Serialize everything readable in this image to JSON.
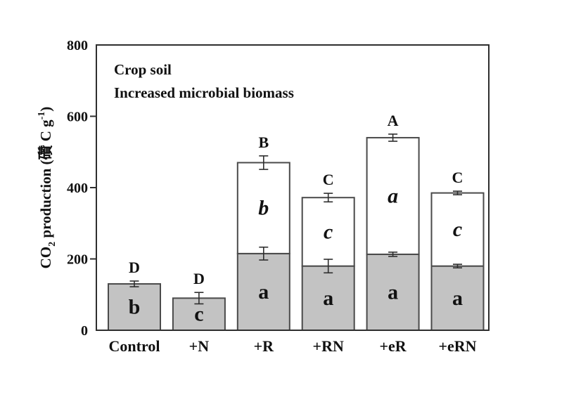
{
  "style": {
    "background": "#ffffff",
    "frame_color": "#2e2e2e",
    "bar_stroke_color": "#4a4a4a",
    "gray_fill": "#c3c3c3",
    "white_fill": "#ffffff",
    "error_bar_color": "#2e2e2e",
    "text_color": "#111111"
  },
  "chart_data": {
    "type": "bar",
    "stacked": true,
    "annotation_lines": [
      "Crop soil",
      "Increased microbial biomass"
    ],
    "ylabel_parts": {
      "prefix": "CO",
      "sub": "2",
      "middle": " production (礸 C g",
      "sup": "-1",
      "suffix": ")"
    },
    "ylim": [
      0,
      800
    ],
    "yticks": [
      0,
      200,
      400,
      600,
      800
    ],
    "inner_tick_values": [
      200,
      400,
      600
    ],
    "categories": [
      "Control",
      "+N",
      "+R",
      "+RN",
      "+eR",
      "+eRN"
    ],
    "legend": "none",
    "grid": "off",
    "bars": [
      {
        "category": "Control",
        "gray_value": 130,
        "gray_error": 8,
        "gray_letter": "b",
        "white_total": null,
        "white_error": null,
        "white_letter": null,
        "group_letter": "D"
      },
      {
        "category": "+N",
        "gray_value": 90,
        "gray_error": 16,
        "gray_letter": "c",
        "white_total": null,
        "white_error": null,
        "white_letter": null,
        "group_letter": "D"
      },
      {
        "category": "+R",
        "gray_value": 215,
        "gray_error": 18,
        "gray_letter": "a",
        "white_total": 470,
        "white_error": 19,
        "white_letter": "b",
        "group_letter": "B"
      },
      {
        "category": "+RN",
        "gray_value": 180,
        "gray_error": 19,
        "gray_letter": "a",
        "white_total": 372,
        "white_error": 12,
        "white_letter": "c",
        "group_letter": "C"
      },
      {
        "category": "+eR",
        "gray_value": 213,
        "gray_error": 6,
        "gray_letter": "a",
        "white_total": 540,
        "white_error": 10,
        "white_letter": "a",
        "group_letter": "A"
      },
      {
        "category": "+eRN",
        "gray_value": 180,
        "gray_error": 5,
        "gray_letter": "a",
        "white_total": 385,
        "white_error": 5,
        "white_letter": "c",
        "group_letter": "C"
      }
    ]
  }
}
